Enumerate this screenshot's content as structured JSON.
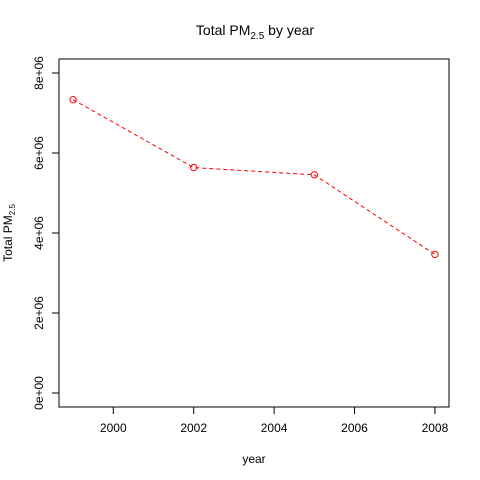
{
  "chart_data": {
    "type": "line",
    "title": "Total PM",
    "title_sub": "2.5",
    "title_rest": " by year",
    "xlabel": "year",
    "ylabel": "Total PM",
    "ylabel_sub": "2.5",
    "x": [
      1999,
      2002,
      2005,
      2008
    ],
    "series": [
      {
        "values": [
          7332967,
          5635780,
          5454703,
          3464206
        ],
        "color": "#ff0000",
        "line_style": "dashed",
        "marker": "open-circle"
      }
    ],
    "xlim": [
      1998.65,
      2008.35
    ],
    "ylim": [
      0,
      8000000
    ],
    "x_ticks": [
      2000,
      2002,
      2004,
      2006,
      2008
    ],
    "x_tick_labels": [
      "2000",
      "2002",
      "2004",
      "2006",
      "2008"
    ],
    "y_ticks": [
      0,
      2000000,
      4000000,
      6000000,
      8000000
    ],
    "y_tick_labels": [
      "0e+00",
      "2e+06",
      "4e+06",
      "6e+06",
      "8e+06"
    ],
    "grid": false,
    "legend": "none"
  }
}
